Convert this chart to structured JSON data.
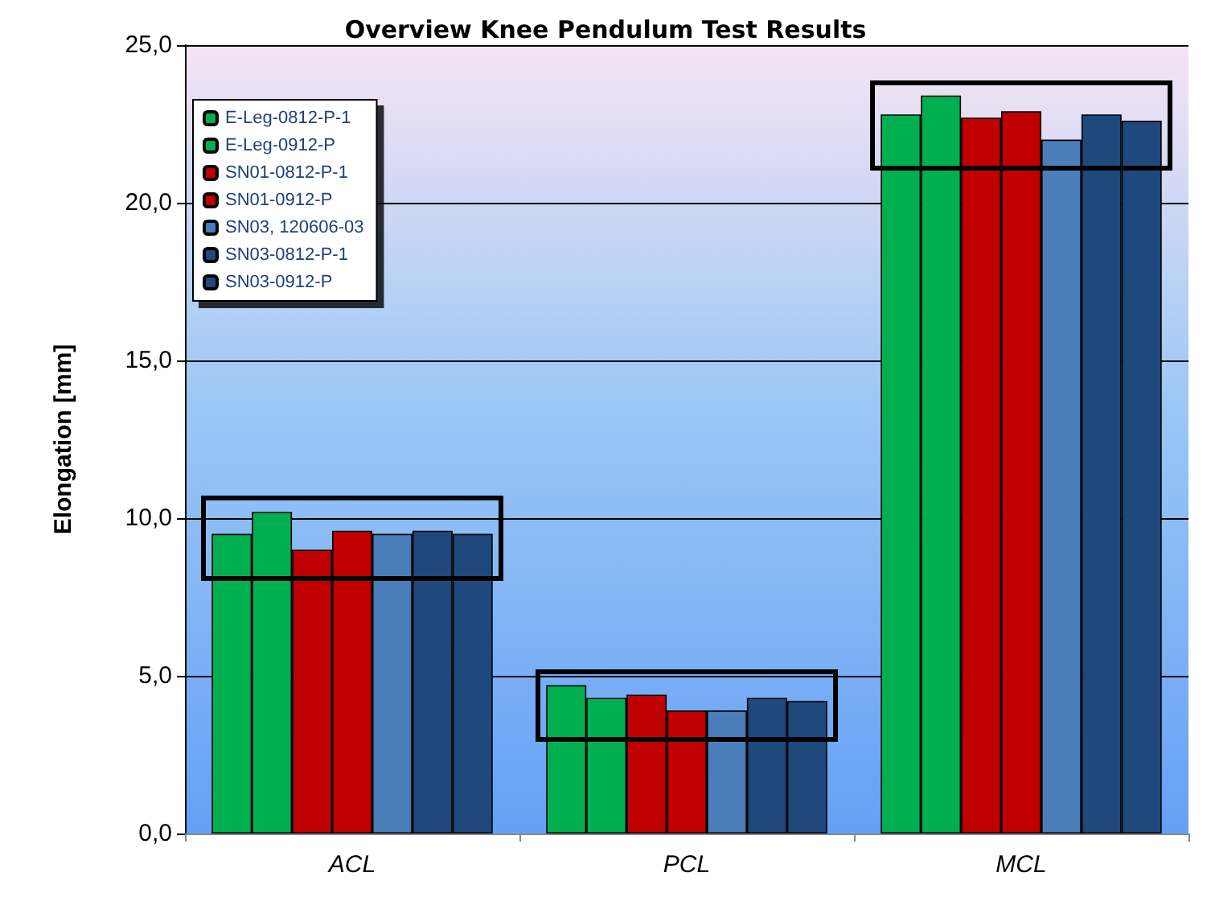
{
  "chart_data": {
    "type": "bar",
    "title": "Overview Knee Pendulum Test Results",
    "ylabel": "Elongation [mm]",
    "categories": [
      "ACL",
      "PCL",
      "MCL"
    ],
    "series": [
      {
        "name": "E-Leg-0812-P-1",
        "color": "#00b050",
        "values": [
          9.5,
          4.7,
          22.8
        ]
      },
      {
        "name": "E-Leg-0912-P",
        "color": "#00b050",
        "values": [
          10.2,
          4.3,
          23.4
        ]
      },
      {
        "name": "SN01-0812-P-1",
        "color": "#c00000",
        "values": [
          9.0,
          4.4,
          22.7
        ]
      },
      {
        "name": "SN01-0912-P",
        "color": "#c00000",
        "values": [
          9.6,
          3.9,
          22.9
        ]
      },
      {
        "name": "SN03, 120606-03",
        "color": "#4a7ebb",
        "values": [
          9.5,
          3.9,
          22.0
        ]
      },
      {
        "name": "SN03-0812-P-1",
        "color": "#1f497d",
        "values": [
          9.6,
          4.3,
          22.8
        ]
      },
      {
        "name": "SN03-0912-P",
        "color": "#1f497d",
        "values": [
          9.5,
          4.2,
          22.6
        ]
      }
    ],
    "ylim": [
      0,
      25
    ],
    "yticks": [
      {
        "value": 0,
        "label": "0,0"
      },
      {
        "value": 5,
        "label": "5,0"
      },
      {
        "value": 10,
        "label": "10,0"
      },
      {
        "value": 15,
        "label": "15,0"
      },
      {
        "value": 20,
        "label": "20,0"
      },
      {
        "value": 25,
        "label": "25,0"
      }
    ],
    "grid": "y",
    "legend": "top left"
  }
}
